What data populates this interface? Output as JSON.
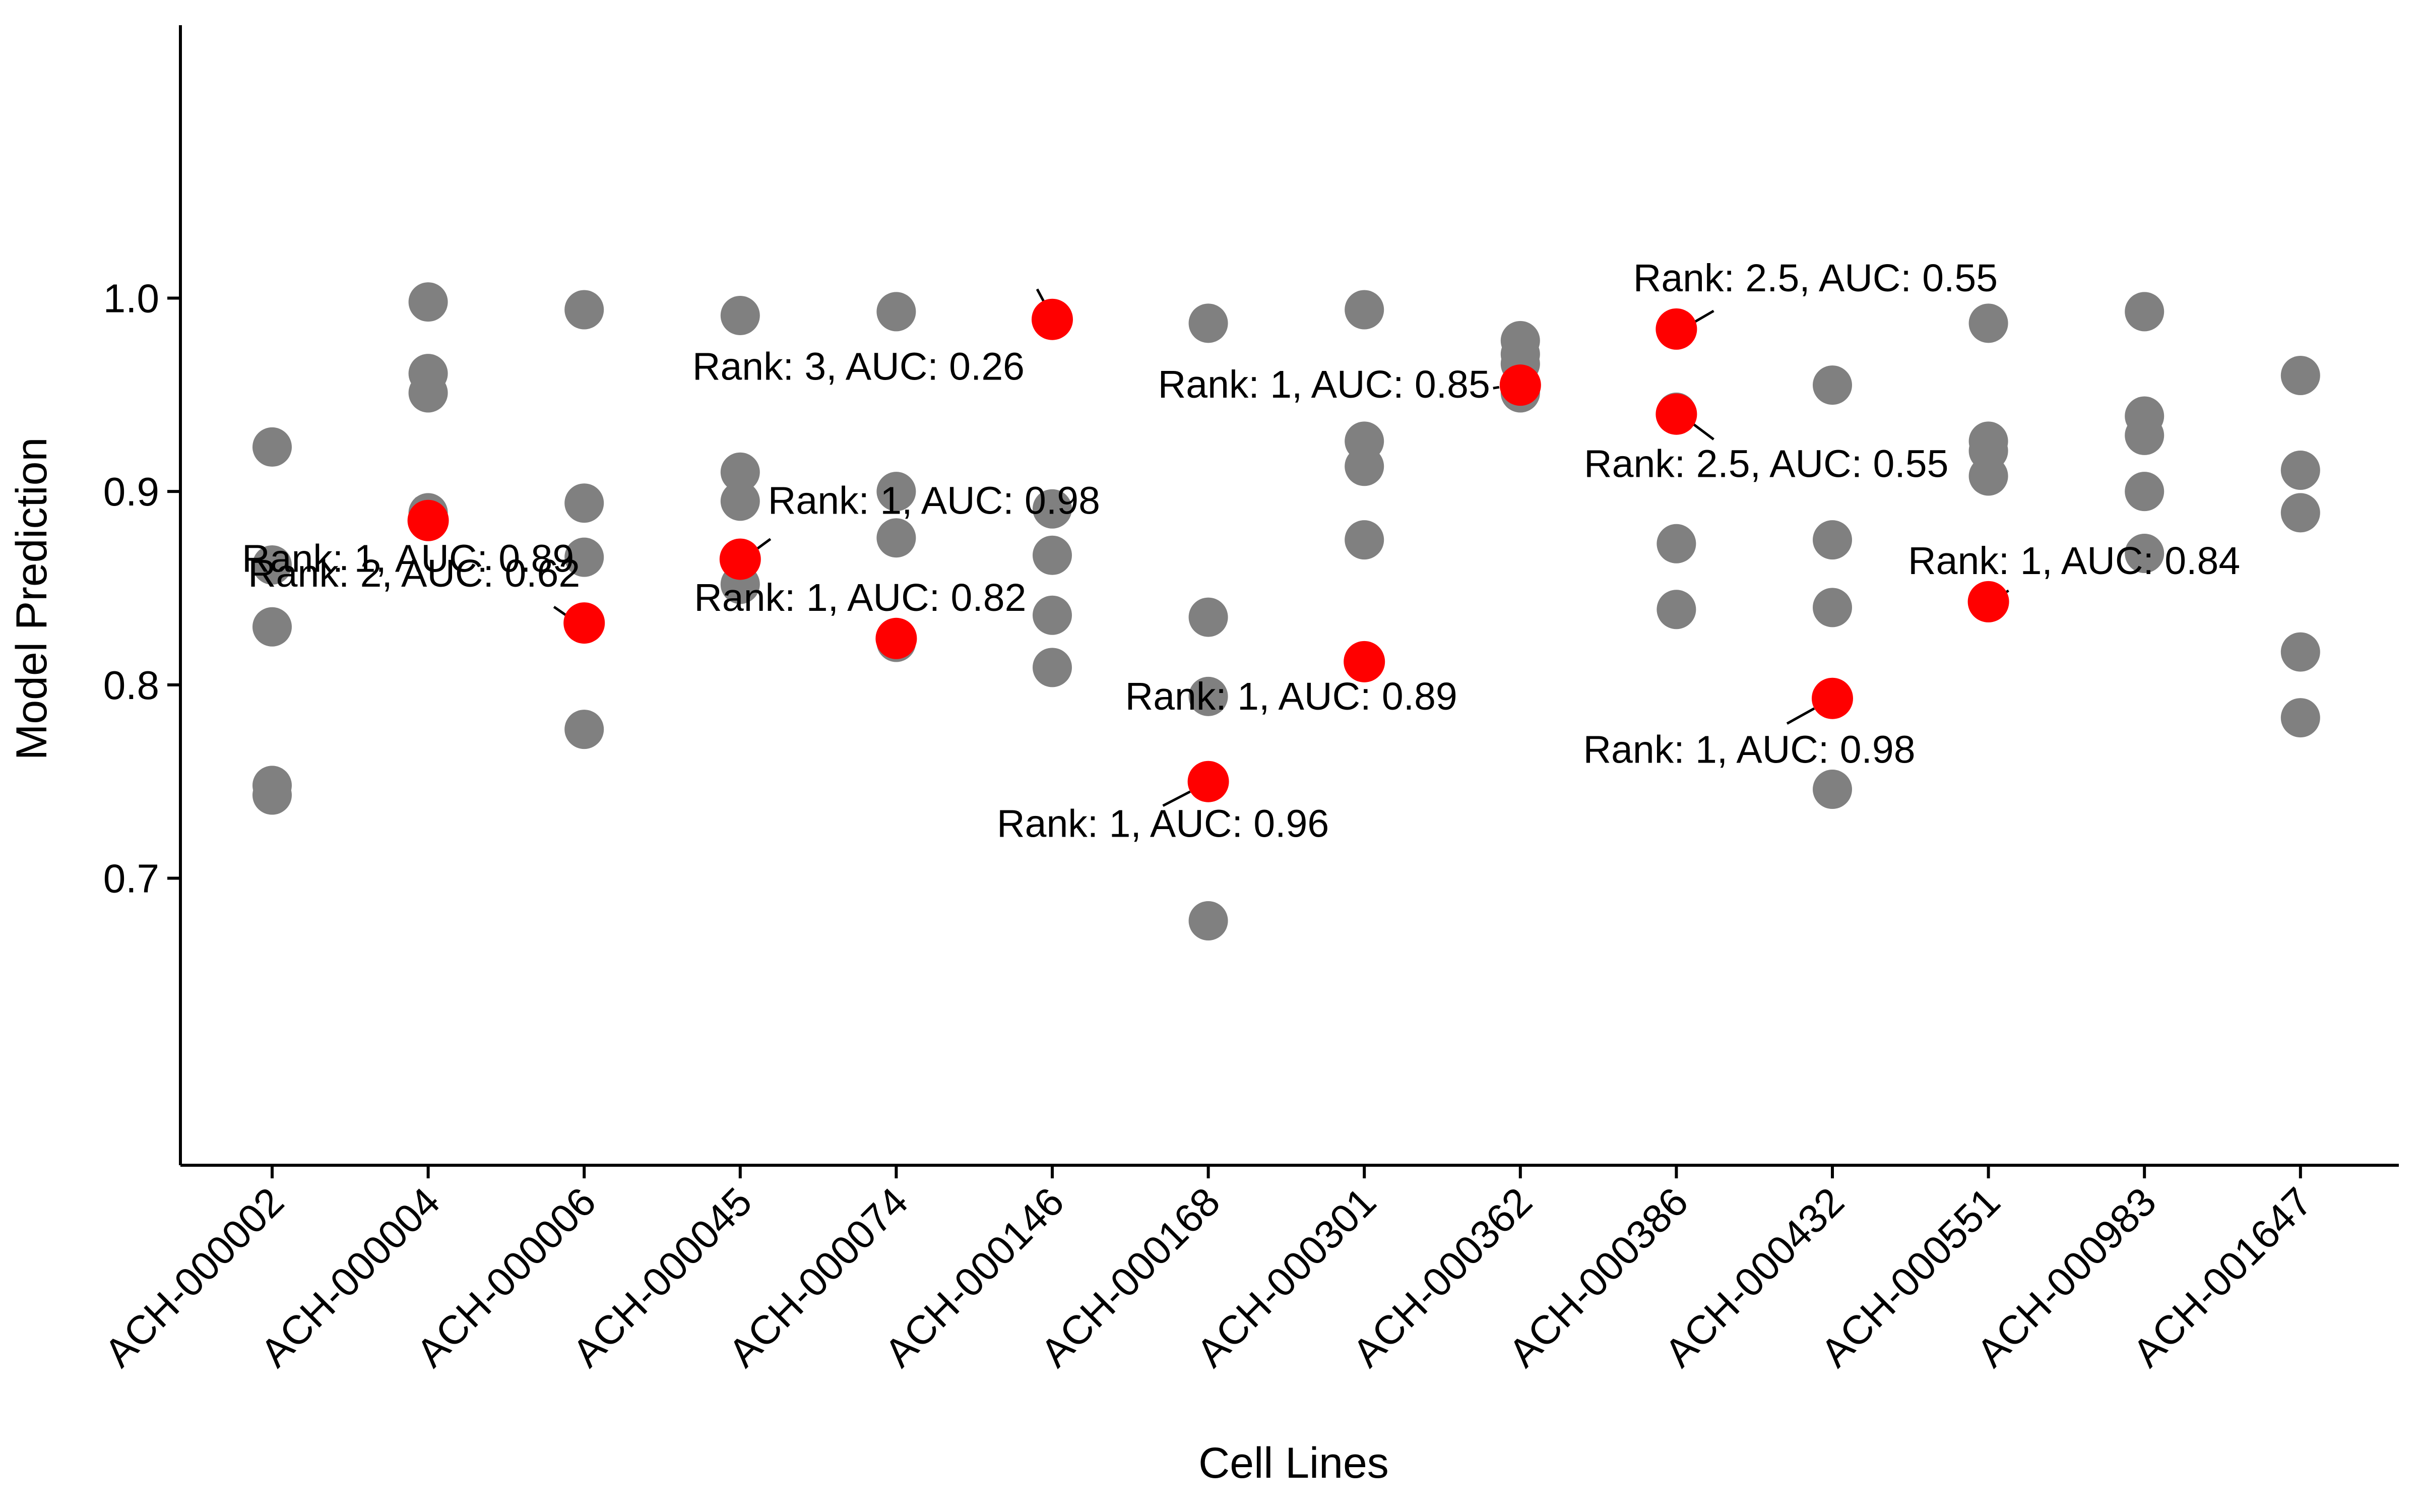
{
  "chart_data": {
    "type": "scatter",
    "title": "",
    "xlabel": "Cell Lines",
    "ylabel": "Model Prediction",
    "ylim": [
      0.66,
      1.015
    ],
    "yticks": [
      0.7,
      0.8,
      0.9,
      1.0
    ],
    "ytick_labels": [
      "0.7",
      "0.8",
      "0.9",
      "1.0"
    ],
    "grid": false,
    "legend": "none",
    "colors": {
      "other": "#808080",
      "highlight": "#ff0000",
      "axis": "#000000"
    },
    "categories": [
      "ACH-000002",
      "ACH-000004",
      "ACH-000006",
      "ACH-000045",
      "ACH-000074",
      "ACH-000146",
      "ACH-000168",
      "ACH-000301",
      "ACH-000362",
      "ACH-000386",
      "ACH-000432",
      "ACH-000551",
      "ACH-000983",
      "ACH-001647"
    ],
    "series": [
      {
        "role": "other",
        "points": [
          [
            "ACH-000002",
            0.923
          ],
          [
            "ACH-000002",
            0.862
          ],
          [
            "ACH-000002",
            0.83
          ],
          [
            "ACH-000002",
            0.748
          ],
          [
            "ACH-000002",
            0.743
          ],
          [
            "ACH-000004",
            0.998
          ],
          [
            "ACH-000004",
            0.961
          ],
          [
            "ACH-000004",
            0.951
          ],
          [
            "ACH-000004",
            0.889
          ],
          [
            "ACH-000006",
            0.994
          ],
          [
            "ACH-000006",
            0.894
          ],
          [
            "ACH-000006",
            0.866
          ],
          [
            "ACH-000006",
            0.777
          ],
          [
            "ACH-000045",
            0.991
          ],
          [
            "ACH-000045",
            0.91
          ],
          [
            "ACH-000045",
            0.895
          ],
          [
            "ACH-000045",
            0.852
          ],
          [
            "ACH-000074",
            0.993
          ],
          [
            "ACH-000074",
            0.9
          ],
          [
            "ACH-000074",
            0.876
          ],
          [
            "ACH-000074",
            0.822
          ],
          [
            "ACH-000146",
            0.891
          ],
          [
            "ACH-000146",
            0.867
          ],
          [
            "ACH-000146",
            0.836
          ],
          [
            "ACH-000146",
            0.809
          ],
          [
            "ACH-000168",
            0.987
          ],
          [
            "ACH-000168",
            0.835
          ],
          [
            "ACH-000168",
            0.794
          ],
          [
            "ACH-000168",
            0.678
          ],
          [
            "ACH-000301",
            0.994
          ],
          [
            "ACH-000301",
            0.926
          ],
          [
            "ACH-000301",
            0.913
          ],
          [
            "ACH-000301",
            0.875
          ],
          [
            "ACH-000362",
            0.978
          ],
          [
            "ACH-000362",
            0.971
          ],
          [
            "ACH-000362",
            0.966
          ],
          [
            "ACH-000362",
            0.951
          ],
          [
            "ACH-000386",
            0.941
          ],
          [
            "ACH-000386",
            0.873
          ],
          [
            "ACH-000386",
            0.839
          ],
          [
            "ACH-000432",
            0.955
          ],
          [
            "ACH-000432",
            0.875
          ],
          [
            "ACH-000432",
            0.84
          ],
          [
            "ACH-000432",
            0.746
          ],
          [
            "ACH-000551",
            0.987
          ],
          [
            "ACH-000551",
            0.926
          ],
          [
            "ACH-000551",
            0.921
          ],
          [
            "ACH-000551",
            0.908
          ],
          [
            "ACH-000983",
            0.993
          ],
          [
            "ACH-000983",
            0.939
          ],
          [
            "ACH-000983",
            0.929
          ],
          [
            "ACH-000983",
            0.9
          ],
          [
            "ACH-000983",
            0.868
          ],
          [
            "ACH-001647",
            0.96
          ],
          [
            "ACH-001647",
            0.911
          ],
          [
            "ACH-001647",
            0.889
          ],
          [
            "ACH-001647",
            0.817
          ],
          [
            "ACH-001647",
            0.783
          ]
        ]
      },
      {
        "role": "highlight",
        "points": [
          {
            "x": "ACH-000004",
            "y": 0.885,
            "label": "Rank: 1, AUC: 0.89"
          },
          {
            "x": "ACH-000006",
            "y": 0.832,
            "label": "Rank: 2, AUC: 0.62"
          },
          {
            "x": "ACH-000045",
            "y": 0.865,
            "label": "Rank: 1, AUC: 0.98"
          },
          {
            "x": "ACH-000074",
            "y": 0.824,
            "label": "Rank: 1, AUC: 0.82"
          },
          {
            "x": "ACH-000146",
            "y": 0.989,
            "label": "Rank: 3, AUC: 0.26"
          },
          {
            "x": "ACH-000168",
            "y": 0.75,
            "label": "Rank: 1, AUC: 0.96"
          },
          {
            "x": "ACH-000301",
            "y": 0.812,
            "label": "Rank: 1, AUC: 0.89"
          },
          {
            "x": "ACH-000362",
            "y": 0.955,
            "label": "Rank: 1, AUC: 0.85"
          },
          {
            "x": "ACH-000386",
            "y": 0.984,
            "label": "Rank: 2.5, AUC: 0.55"
          },
          {
            "x": "ACH-000386",
            "y": 0.94,
            "label": "Rank: 2.5, AUC: 0.55"
          },
          {
            "x": "ACH-000432",
            "y": 0.793,
            "label": "Rank: 1, AUC: 0.98"
          },
          {
            "x": "ACH-000551",
            "y": 0.843,
            "label": "Rank: 1, AUC: 0.84"
          }
        ]
      }
    ]
  }
}
